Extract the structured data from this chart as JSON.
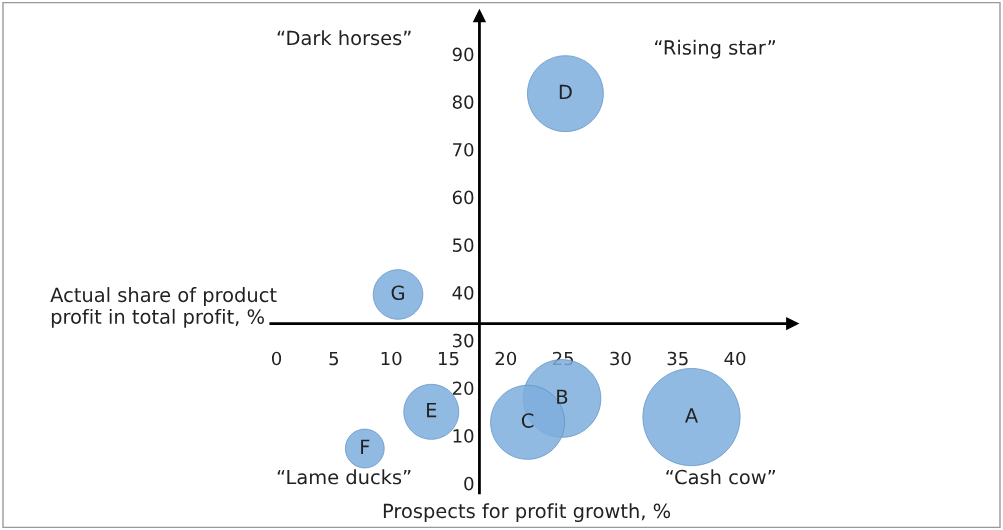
{
  "chart_data": {
    "type": "bubble",
    "xlabel": "Prospects for profit growth, %",
    "ylabel": "Actual share of product\nprofit in total profit, %",
    "x": [
      36.2,
      24.9,
      21.9,
      25.2,
      13.5,
      7.7,
      10.6
    ],
    "values": [
      13.9,
      17.8,
      12.8,
      81.7,
      15.0,
      7.3,
      39.6
    ],
    "sizes": [
      1,
      0.64,
      0.58,
      0.61,
      0.32,
      0.16,
      0.26
    ],
    "color": "#7eaedd",
    "annotations": [
      {
        "text": "A",
        "x": 36.2,
        "y": 13.9
      },
      {
        "text": "B",
        "x": 24.9,
        "y": 17.8
      },
      {
        "text": "C",
        "x": 21.9,
        "y": 12.8
      },
      {
        "text": "D",
        "x": 25.2,
        "y": 81.7
      },
      {
        "text": "E",
        "x": 13.5,
        "y": 15.0
      },
      {
        "text": "F",
        "x": 7.7,
        "y": 7.3
      },
      {
        "text": "G",
        "x": 10.6,
        "y": 39.6
      },
      "“Dark horses”",
      "“Rising star”",
      "“Lame ducks”",
      "“Cash cow”"
    ],
    "xlim": [
      -0.5,
      45
    ],
    "ylim": [
      -2,
      98
    ],
    "xticks": [
      0,
      5,
      10,
      15,
      20,
      25,
      30,
      35,
      40
    ],
    "yticks": [
      0,
      10,
      20,
      30,
      40,
      50,
      60,
      70,
      80,
      90
    ],
    "grid": false,
    "legend": false
  }
}
